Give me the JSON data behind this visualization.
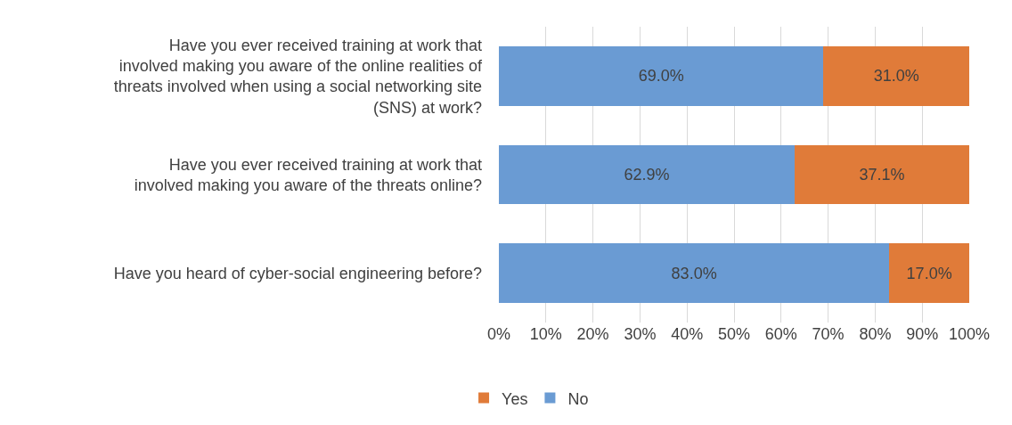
{
  "chart_data": {
    "type": "bar",
    "orientation": "horizontal",
    "stacked": true,
    "categories": [
      "Have you ever received training at work that involved making you aware of the online realities of threats involved when using a social networking site (SNS) at work?",
      "Have you ever received training at work that involved making you aware of the threats online?",
      "Have you heard of cyber-social engineering before?"
    ],
    "series": [
      {
        "name": "No",
        "color": "#6a9bd3",
        "values": [
          69.0,
          62.9,
          83.0
        ],
        "value_labels": [
          "69.0%",
          "62.9%",
          "83.0%"
        ]
      },
      {
        "name": "Yes",
        "color": "#e07b39",
        "values": [
          31.0,
          37.1,
          17.0
        ],
        "value_labels": [
          "31.0%",
          "37.1%",
          "17.0%"
        ]
      }
    ],
    "xlim": [
      0,
      100
    ],
    "xticks": [
      {
        "value": 0,
        "label": "0%"
      },
      {
        "value": 10,
        "label": "10%"
      },
      {
        "value": 20,
        "label": "20%"
      },
      {
        "value": 30,
        "label": "30%"
      },
      {
        "value": 40,
        "label": "40%"
      },
      {
        "value": 50,
        "label": "50%"
      },
      {
        "value": 60,
        "label": "60%"
      },
      {
        "value": 70,
        "label": "70%"
      },
      {
        "value": 80,
        "label": "80%"
      },
      {
        "value": 90,
        "label": "90%"
      },
      {
        "value": 100,
        "label": "100%"
      }
    ],
    "grid": "x",
    "legend": "bottom left"
  }
}
